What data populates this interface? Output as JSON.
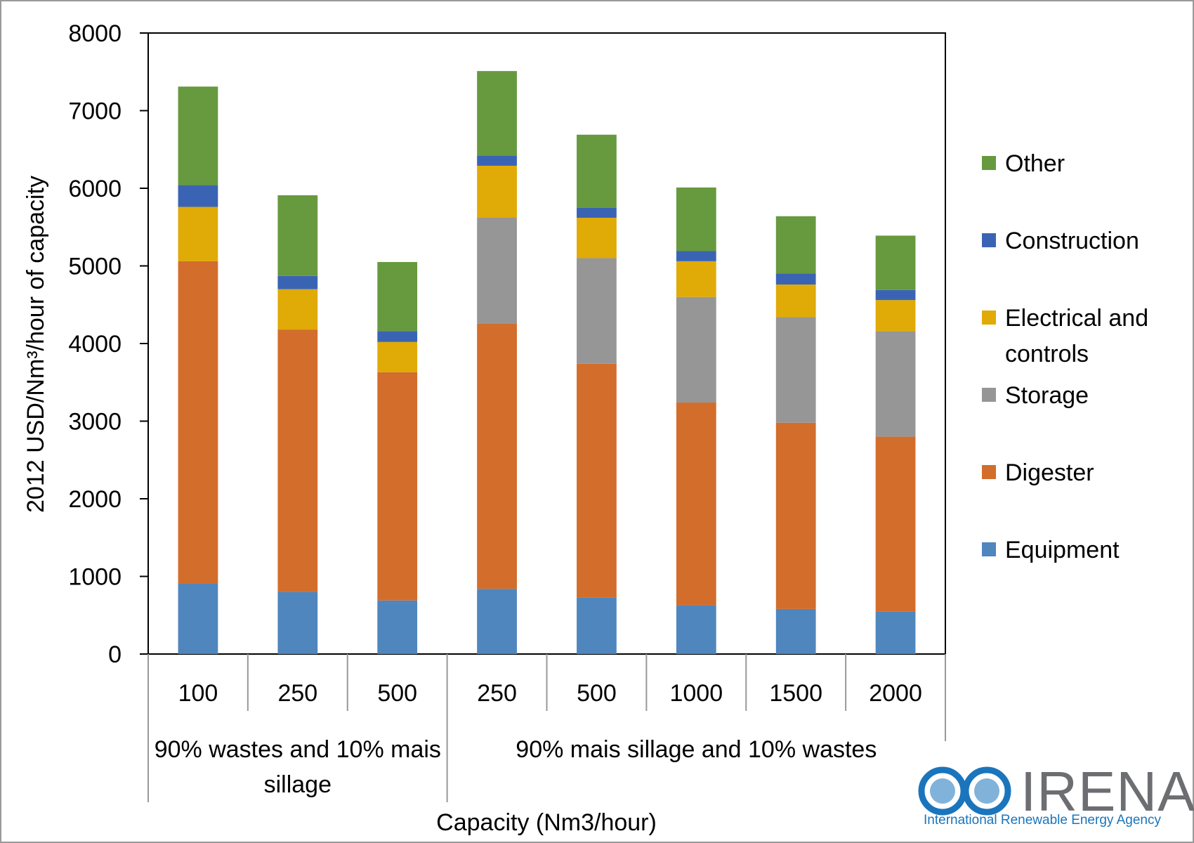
{
  "chart_data": {
    "type": "bar",
    "stacked": true,
    "ylabel": "2012 USD/Nm³/hour of capacity",
    "xlabel": "Capacity (Nm3/hour)",
    "ylim": [
      0,
      8000
    ],
    "yticks": [
      0,
      1000,
      2000,
      3000,
      4000,
      5000,
      6000,
      7000,
      8000
    ],
    "grid": false,
    "legend_position": "right",
    "categories": [
      "100",
      "250",
      "500",
      "250",
      "500",
      "1000",
      "1500",
      "2000"
    ],
    "groups": [
      {
        "label": "90% wastes and 10% mais sillage",
        "categories": [
          "100",
          "250",
          "500"
        ]
      },
      {
        "label": "90% mais sillage and 10% wastes",
        "categories": [
          "250",
          "500",
          "1000",
          "1500",
          "2000"
        ]
      }
    ],
    "series": [
      {
        "name": "Equipment",
        "color": "#4f86bd",
        "values": [
          910,
          800,
          690,
          840,
          730,
          630,
          580,
          550
        ]
      },
      {
        "name": "Digester",
        "color": "#d36d2c",
        "values": [
          4150,
          3380,
          2940,
          3420,
          3010,
          2610,
          2400,
          2250
        ]
      },
      {
        "name": "Storage",
        "color": "#969696",
        "values": [
          0,
          0,
          0,
          1360,
          1360,
          1360,
          1360,
          1360
        ]
      },
      {
        "name": "Electrical and controls",
        "color": "#e0aa07",
        "values": [
          700,
          520,
          390,
          670,
          520,
          460,
          420,
          400
        ]
      },
      {
        "name": "Construction",
        "color": "#3a64b3",
        "values": [
          280,
          170,
          140,
          130,
          130,
          130,
          140,
          130
        ]
      },
      {
        "name": "Other",
        "color": "#67993f",
        "values": [
          1270,
          1040,
          890,
          1090,
          940,
          820,
          740,
          700
        ]
      }
    ],
    "legend_order": [
      "Other",
      "Construction",
      "Electrical and controls",
      "Storage",
      "Digester",
      "Equipment"
    ]
  },
  "logo": {
    "name": "IRENA",
    "tagline": "International Renewable Energy Agency"
  }
}
